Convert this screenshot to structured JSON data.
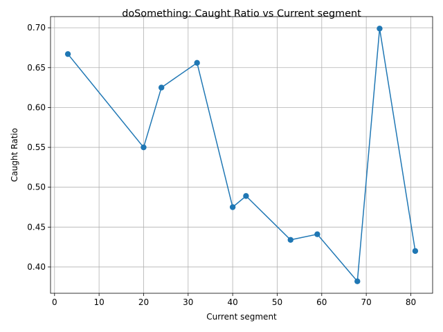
{
  "chart_data": {
    "type": "line",
    "title": "doSomething: Caught Ratio vs Current segment",
    "xlabel": "Current segment",
    "ylabel": "Caught Ratio",
    "xlim": [
      -0.9,
      84.9
    ],
    "ylim": [
      0.367,
      0.714
    ],
    "xticks": [
      0,
      10,
      20,
      30,
      40,
      50,
      60,
      70,
      80
    ],
    "yticks": [
      0.4,
      0.45,
      0.5,
      0.55,
      0.6,
      0.65,
      0.7
    ],
    "xtick_labels": [
      "0",
      "10",
      "20",
      "30",
      "40",
      "50",
      "60",
      "70",
      "80"
    ],
    "ytick_labels": [
      "0.40",
      "0.45",
      "0.50",
      "0.55",
      "0.60",
      "0.65",
      "0.70"
    ],
    "grid": true,
    "marker": "circle",
    "color": "#1f77b4",
    "series": [
      {
        "x": [
          3,
          20,
          24,
          32,
          40,
          43,
          53,
          59,
          68,
          73,
          81
        ],
        "y": [
          0.667,
          0.55,
          0.625,
          0.656,
          0.475,
          0.489,
          0.434,
          0.441,
          0.382,
          0.699,
          0.42
        ]
      }
    ]
  }
}
